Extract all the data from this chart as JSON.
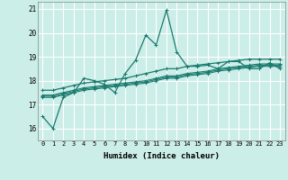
{
  "title": "",
  "xlabel": "Humidex (Indice chaleur)",
  "xlim": [
    -0.5,
    23.5
  ],
  "ylim": [
    15.5,
    21.3
  ],
  "yticks": [
    16,
    17,
    18,
    19,
    20,
    21
  ],
  "xticks": [
    0,
    1,
    2,
    3,
    4,
    5,
    6,
    7,
    8,
    9,
    10,
    11,
    12,
    13,
    14,
    15,
    16,
    17,
    18,
    19,
    20,
    21,
    22,
    23
  ],
  "bg_color": "#cceee8",
  "grid_color": "#ffffff",
  "line_color": "#1a7a6e",
  "lines": [
    [
      16.5,
      16.0,
      17.3,
      17.5,
      18.1,
      18.0,
      17.85,
      17.5,
      18.3,
      18.85,
      19.9,
      19.5,
      20.95,
      19.2,
      18.6,
      18.6,
      18.65,
      18.5,
      18.8,
      18.8,
      18.5,
      18.5,
      18.75,
      18.5
    ],
    [
      17.3,
      17.3,
      17.4,
      17.5,
      17.6,
      17.65,
      17.7,
      17.75,
      17.8,
      17.85,
      17.9,
      18.0,
      18.1,
      18.1,
      18.2,
      18.25,
      18.3,
      18.4,
      18.45,
      18.5,
      18.55,
      18.6,
      18.6,
      18.6
    ],
    [
      17.35,
      17.35,
      17.45,
      17.55,
      17.65,
      17.7,
      17.75,
      17.8,
      17.85,
      17.9,
      17.95,
      18.05,
      18.15,
      18.15,
      18.25,
      18.3,
      18.35,
      18.45,
      18.5,
      18.55,
      18.6,
      18.65,
      18.65,
      18.65
    ],
    [
      17.4,
      17.4,
      17.5,
      17.6,
      17.7,
      17.75,
      17.8,
      17.85,
      17.9,
      17.95,
      18.0,
      18.1,
      18.2,
      18.2,
      18.3,
      18.35,
      18.4,
      18.5,
      18.55,
      18.6,
      18.65,
      18.7,
      18.7,
      18.7
    ],
    [
      17.6,
      17.6,
      17.7,
      17.8,
      17.9,
      17.95,
      18.0,
      18.05,
      18.1,
      18.2,
      18.3,
      18.4,
      18.5,
      18.5,
      18.6,
      18.65,
      18.7,
      18.75,
      18.8,
      18.85,
      18.9,
      18.9,
      18.9,
      18.9
    ]
  ],
  "linewidths": [
    0.9,
    0.8,
    0.8,
    0.8,
    0.9
  ]
}
